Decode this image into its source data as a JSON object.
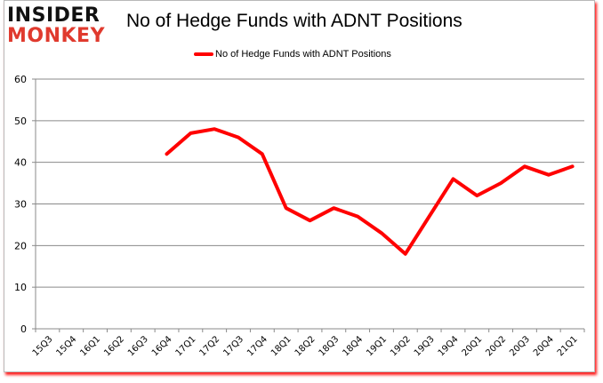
{
  "logo": {
    "line1": "INSIDER",
    "line2": "MONKEY"
  },
  "header": {
    "title": "No of Hedge Funds with ADNT Positions"
  },
  "legend": {
    "label": "No of Hedge Funds with ADNT Positions",
    "color": "#ff0000"
  },
  "chart_data": {
    "type": "line",
    "title": "No of Hedge Funds with ADNT Positions",
    "xlabel": "",
    "ylabel": "",
    "ylim": [
      0,
      60
    ],
    "yticks": [
      0,
      10,
      20,
      30,
      40,
      50,
      60
    ],
    "grid": true,
    "legend_position": "top",
    "categories": [
      "15Q3",
      "15Q4",
      "16Q1",
      "16Q2",
      "16Q3",
      "16Q4",
      "17Q1",
      "17Q2",
      "17Q3",
      "17Q4",
      "18Q1",
      "18Q2",
      "18Q3",
      "18Q4",
      "19Q1",
      "19Q2",
      "19Q3",
      "19Q4",
      "20Q1",
      "20Q2",
      "20Q3",
      "20Q4",
      "21Q1"
    ],
    "series": [
      {
        "name": "No of Hedge Funds with ADNT Positions",
        "color": "#ff0000",
        "values": [
          null,
          null,
          null,
          null,
          null,
          42,
          47,
          48,
          46,
          42,
          29,
          26,
          29,
          27,
          23,
          18,
          27,
          36,
          32,
          35,
          39,
          37,
          39
        ]
      }
    ]
  }
}
